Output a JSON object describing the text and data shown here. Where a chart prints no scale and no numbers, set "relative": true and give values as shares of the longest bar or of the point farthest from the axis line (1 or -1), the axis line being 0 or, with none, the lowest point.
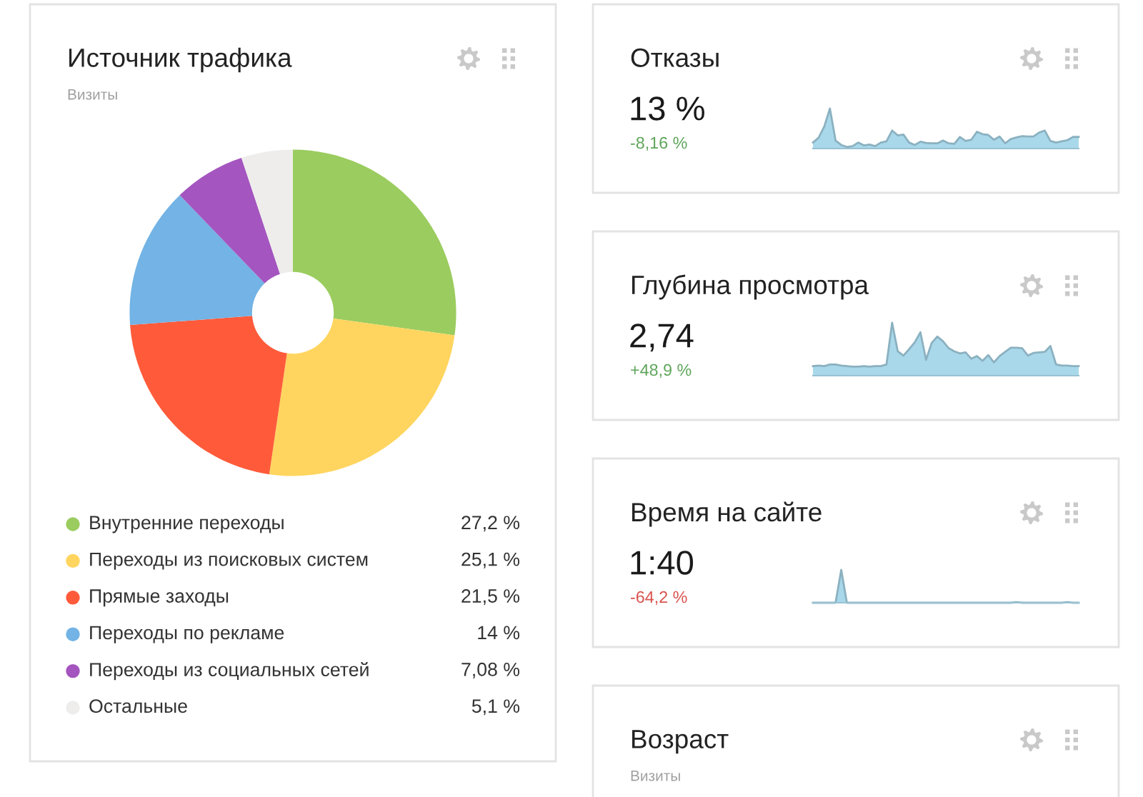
{
  "chart_data": [
    {
      "type": "donut",
      "title": "Источник трафика",
      "subtitle": "Визиты",
      "categories": [
        "Внутренние переходы",
        "Переходы из поисковых систем",
        "Прямые заходы",
        "Переходы по рекламе",
        "Переходы из социальных сетей",
        "Остальные"
      ],
      "values": [
        27.2,
        25.1,
        21.5,
        14,
        7.08,
        5.1
      ],
      "colors": [
        "#9bcc5f",
        "#ffd55f",
        "#ff5b3b",
        "#73b3e5",
        "#a455bf",
        "#eeedeb"
      ],
      "value_labels": [
        "27,2 %",
        "25,1 %",
        "21,5 %",
        "14 %",
        "7,08 %",
        "5,1 %"
      ],
      "legend": "bottom"
    },
    {
      "type": "area",
      "title": "Отказы",
      "annotations": [
        "13 %",
        "-8,16 %"
      ],
      "relative": true,
      "color": "#a9d8ea",
      "categories": [
        null,
        null,
        null,
        null,
        null,
        null,
        null,
        null,
        null,
        null,
        null,
        null,
        null,
        null,
        null,
        null,
        null,
        null,
        null,
        null,
        null,
        null,
        null,
        null,
        null,
        null,
        null,
        null,
        null,
        null,
        null,
        null,
        null,
        null,
        null,
        null,
        null,
        null,
        null,
        null,
        null,
        null,
        null,
        null,
        null,
        null,
        null,
        null
      ],
      "values": [
        0.15,
        0.27,
        0.55,
        1.0,
        0.2,
        0.09,
        0.04,
        0.06,
        0.15,
        0.08,
        0.1,
        0.06,
        0.15,
        0.18,
        0.45,
        0.33,
        0.35,
        0.15,
        0.09,
        0.17,
        0.14,
        0.13,
        0.13,
        0.2,
        0.13,
        0.12,
        0.29,
        0.19,
        0.22,
        0.42,
        0.36,
        0.34,
        0.22,
        0.3,
        0.13,
        0.24,
        0.28,
        0.31,
        0.3,
        0.3,
        0.4,
        0.45,
        0.19,
        0.15,
        0.18,
        0.21,
        0.29,
        0.29
      ]
    },
    {
      "type": "area",
      "title": "Глубина просмотра",
      "annotations": [
        "2,74",
        "+48,9 %"
      ],
      "relative": true,
      "color": "#a9d8ea",
      "categories": [
        null,
        null,
        null,
        null,
        null,
        null,
        null,
        null,
        null,
        null,
        null,
        null,
        null,
        null,
        null,
        null,
        null,
        null,
        null,
        null,
        null,
        null,
        null,
        null,
        null,
        null,
        null,
        null,
        null,
        null,
        null,
        null,
        null,
        null,
        null,
        null,
        null,
        null,
        null,
        null,
        null,
        null,
        null,
        null,
        null,
        null,
        null,
        null
      ],
      "values": [
        0.18,
        0.19,
        0.18,
        0.21,
        0.21,
        0.19,
        0.18,
        0.17,
        0.17,
        0.18,
        0.17,
        0.18,
        0.18,
        0.21,
        1.0,
        0.46,
        0.38,
        0.5,
        0.63,
        0.82,
        0.3,
        0.62,
        0.74,
        0.65,
        0.52,
        0.46,
        0.42,
        0.44,
        0.32,
        0.37,
        0.28,
        0.39,
        0.25,
        0.37,
        0.45,
        0.53,
        0.53,
        0.52,
        0.38,
        0.43,
        0.44,
        0.45,
        0.56,
        0.21,
        0.19,
        0.19,
        0.18,
        0.18
      ]
    },
    {
      "type": "area",
      "title": "Время на сайте",
      "annotations": [
        "1:40",
        "-64,2 %"
      ],
      "relative": true,
      "color": "#a9d8ea",
      "categories": [
        null,
        null,
        null,
        null,
        null,
        null,
        null,
        null,
        null,
        null,
        null,
        null,
        null,
        null,
        null,
        null,
        null,
        null,
        null,
        null,
        null,
        null,
        null,
        null,
        null,
        null,
        null,
        null,
        null,
        null,
        null,
        null,
        null,
        null,
        null,
        null,
        null,
        null,
        null,
        null,
        null,
        null,
        null,
        null,
        null,
        null,
        null,
        null
      ],
      "values": [
        0,
        0,
        0,
        0,
        0,
        1.0,
        0,
        0,
        0,
        0,
        0,
        0,
        0,
        0,
        0,
        0,
        0,
        0,
        0,
        0,
        0,
        0,
        0,
        0,
        0,
        0,
        0,
        0,
        0,
        0,
        0,
        0,
        0,
        0,
        0,
        0,
        0.02,
        0,
        0,
        0,
        0,
        0,
        0,
        0,
        0,
        0.02,
        0,
        0
      ]
    },
    {
      "type": "other",
      "title": "Возраст",
      "subtitle": "Визиты"
    }
  ]
}
